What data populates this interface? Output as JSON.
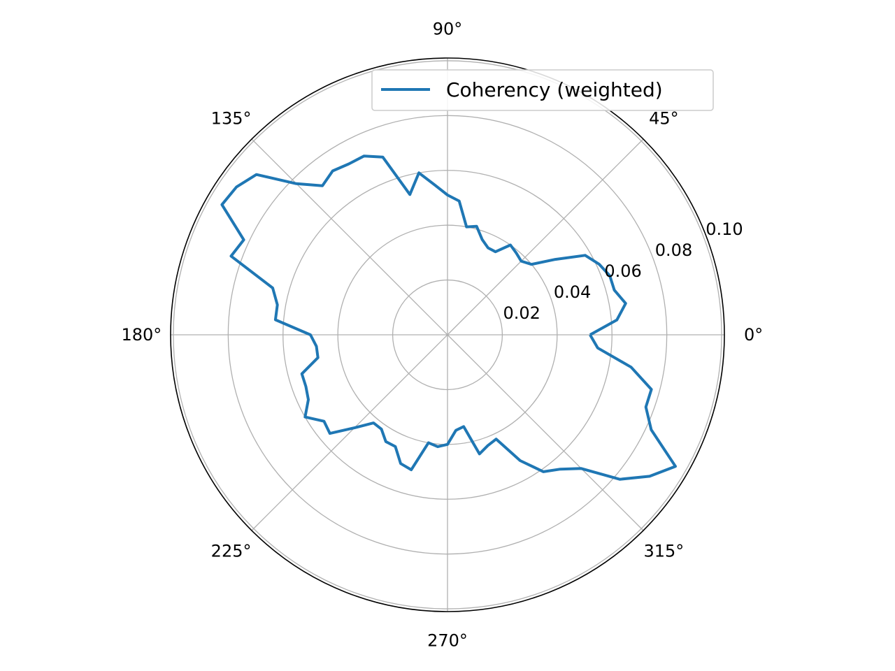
{
  "chart_data": {
    "type": "line",
    "projection": "polar",
    "theta_unit": "degrees",
    "theta_tick_labels": [
      "0°",
      "45°",
      "90°",
      "135°",
      "180°",
      "225°",
      "270°",
      "315°"
    ],
    "theta_ticks": [
      0,
      45,
      90,
      135,
      180,
      225,
      270,
      315
    ],
    "r_tick_labels": [
      "0.02",
      "0.04",
      "0.06",
      "0.08",
      "0.10"
    ],
    "r_ticks": [
      0.02,
      0.04,
      0.06,
      0.08,
      0.1
    ],
    "rlim": [
      0,
      0.101
    ],
    "grid": true,
    "legend_position": "top-right",
    "series": [
      {
        "name": "Coherency (weighted)",
        "color": "#1f77b4",
        "theta": [
          0,
          5,
          10,
          15,
          20,
          25,
          30,
          35,
          40,
          45,
          50,
          55,
          60,
          65,
          70,
          75,
          80,
          85,
          90,
          95,
          100,
          105,
          110,
          115,
          120,
          125,
          130,
          135,
          140,
          145,
          150,
          155,
          160,
          165,
          170,
          175,
          180,
          185,
          190,
          195,
          200,
          205,
          210,
          215,
          220,
          225,
          230,
          235,
          240,
          245,
          250,
          255,
          260,
          265,
          270,
          275,
          280,
          285,
          290,
          295,
          300,
          305,
          310,
          315,
          320,
          325,
          330,
          335,
          340,
          345,
          350,
          355,
          360
        ],
        "r": [
          0.052,
          0.062,
          0.066,
          0.063,
          0.063,
          0.061,
          0.058,
          0.048,
          0.04,
          0.038,
          0.039,
          0.04,
          0.035,
          0.035,
          0.037,
          0.041,
          0.04,
          0.049,
          0.051,
          0.055,
          0.06,
          0.053,
          0.069,
          0.072,
          0.072,
          0.073,
          0.071,
          0.078,
          0.091,
          0.094,
          0.095,
          0.082,
          0.084,
          0.066,
          0.063,
          0.063,
          0.05,
          0.048,
          0.048,
          0.055,
          0.055,
          0.056,
          0.06,
          0.055,
          0.056,
          0.048,
          0.042,
          0.042,
          0.045,
          0.045,
          0.05,
          0.051,
          0.04,
          0.041,
          0.04,
          0.035,
          0.034,
          0.045,
          0.043,
          0.042,
          0.053,
          0.061,
          0.064,
          0.069,
          0.082,
          0.09,
          0.096,
          0.082,
          0.077,
          0.077,
          0.068,
          0.055,
          0.052
        ]
      }
    ]
  }
}
